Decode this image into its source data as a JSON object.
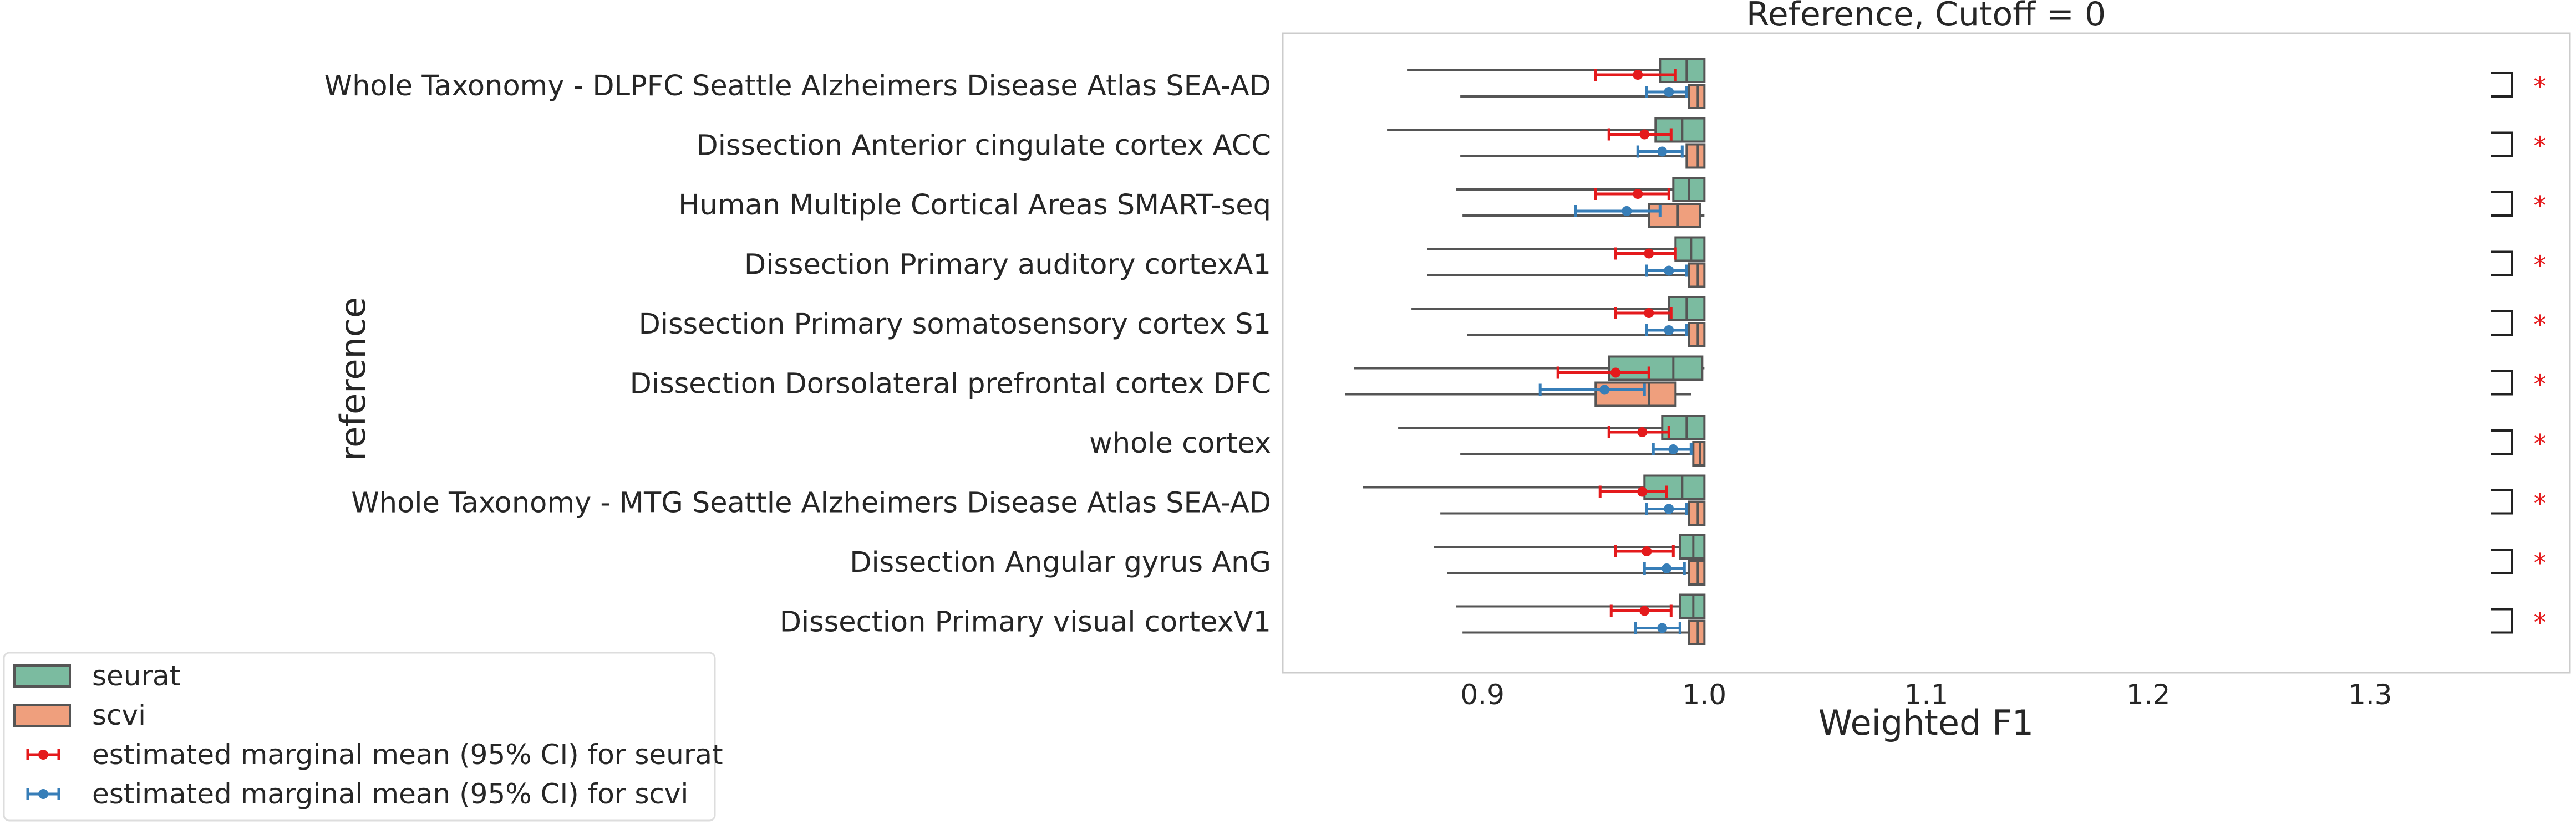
{
  "chart_data": {
    "type": "box",
    "title": "Reference, Cutoff = 0",
    "xlabel": "Weighted F1",
    "ylabel": "reference",
    "xlim": [
      0.81,
      1.39
    ],
    "xticks": [
      "0.9",
      "1.0",
      "1.1",
      "1.2",
      "1.3"
    ],
    "grid": false,
    "legend_position": "lower-left outside",
    "categories": [
      "Whole Taxonomy - DLPFC Seattle Alzheimers Disease Atlas SEA-AD",
      "Dissection Anterior cingulate cortex ACC",
      "Human Multiple Cortical Areas SMART-seq",
      "Dissection Primary auditory cortexA1",
      "Dissection Primary somatosensory cortex S1",
      "Dissection Dorsolateral prefrontal cortex DFC",
      "whole cortex",
      "Whole Taxonomy - MTG Seattle Alzheimers Disease Atlas SEA-AD",
      "Dissection Angular gyrus AnG",
      "Dissection Primary visual cortexV1"
    ],
    "series": [
      {
        "name": "seurat",
        "color": "#7bbba0",
        "boxes": [
          {
            "min": 0.866,
            "q1": 0.98,
            "median": 0.992,
            "q3": 1.0,
            "max": 1.0
          },
          {
            "min": 0.857,
            "q1": 0.978,
            "median": 0.99,
            "q3": 1.0,
            "max": 1.0
          },
          {
            "min": 0.888,
            "q1": 0.986,
            "median": 0.993,
            "q3": 1.0,
            "max": 1.0
          },
          {
            "min": 0.875,
            "q1": 0.987,
            "median": 0.994,
            "q3": 1.0,
            "max": 1.0
          },
          {
            "min": 0.868,
            "q1": 0.984,
            "median": 0.992,
            "q3": 1.0,
            "max": 1.0
          },
          {
            "min": 0.842,
            "q1": 0.957,
            "median": 0.986,
            "q3": 0.999,
            "max": 1.0
          },
          {
            "min": 0.862,
            "q1": 0.981,
            "median": 0.992,
            "q3": 1.0,
            "max": 1.0
          },
          {
            "min": 0.846,
            "q1": 0.973,
            "median": 0.99,
            "q3": 1.0,
            "max": 1.0
          },
          {
            "min": 0.878,
            "q1": 0.989,
            "median": 0.995,
            "q3": 1.0,
            "max": 1.0
          },
          {
            "min": 0.888,
            "q1": 0.989,
            "median": 0.995,
            "q3": 1.0,
            "max": 1.0
          }
        ],
        "emm": [
          {
            "mean": 0.97,
            "lo": 0.951,
            "hi": 0.987
          },
          {
            "mean": 0.973,
            "lo": 0.957,
            "hi": 0.985
          },
          {
            "mean": 0.97,
            "lo": 0.951,
            "hi": 0.984
          },
          {
            "mean": 0.975,
            "lo": 0.96,
            "hi": 0.987
          },
          {
            "mean": 0.975,
            "lo": 0.96,
            "hi": 0.985
          },
          {
            "mean": 0.96,
            "lo": 0.934,
            "hi": 0.975
          },
          {
            "mean": 0.972,
            "lo": 0.957,
            "hi": 0.984
          },
          {
            "mean": 0.972,
            "lo": 0.953,
            "hi": 0.983
          },
          {
            "mean": 0.974,
            "lo": 0.96,
            "hi": 0.986
          },
          {
            "mean": 0.973,
            "lo": 0.958,
            "hi": 0.985
          }
        ]
      },
      {
        "name": "scvi",
        "color": "#ef9f7d",
        "boxes": [
          {
            "min": 0.89,
            "q1": 0.993,
            "median": 0.997,
            "q3": 1.0,
            "max": 1.0
          },
          {
            "min": 0.89,
            "q1": 0.992,
            "median": 0.997,
            "q3": 1.0,
            "max": 1.0
          },
          {
            "min": 0.891,
            "q1": 0.975,
            "median": 0.988,
            "q3": 0.998,
            "max": 1.0
          },
          {
            "min": 0.875,
            "q1": 0.993,
            "median": 0.997,
            "q3": 1.0,
            "max": 1.0
          },
          {
            "min": 0.893,
            "q1": 0.993,
            "median": 0.997,
            "q3": 1.0,
            "max": 1.0
          },
          {
            "min": 0.838,
            "q1": 0.951,
            "median": 0.975,
            "q3": 0.987,
            "max": 0.994
          },
          {
            "min": 0.89,
            "q1": 0.995,
            "median": 0.998,
            "q3": 1.0,
            "max": 1.0
          },
          {
            "min": 0.881,
            "q1": 0.993,
            "median": 0.997,
            "q3": 1.0,
            "max": 1.0
          },
          {
            "min": 0.884,
            "q1": 0.993,
            "median": 0.997,
            "q3": 1.0,
            "max": 1.0
          },
          {
            "min": 0.891,
            "q1": 0.993,
            "median": 0.997,
            "q3": 1.0,
            "max": 1.0
          }
        ],
        "emm": [
          {
            "mean": 0.984,
            "lo": 0.974,
            "hi": 0.992
          },
          {
            "mean": 0.981,
            "lo": 0.97,
            "hi": 0.99
          },
          {
            "mean": 0.965,
            "lo": 0.942,
            "hi": 0.98
          },
          {
            "mean": 0.984,
            "lo": 0.974,
            "hi": 0.992
          },
          {
            "mean": 0.984,
            "lo": 0.974,
            "hi": 0.992
          },
          {
            "mean": 0.955,
            "lo": 0.926,
            "hi": 0.973
          },
          {
            "mean": 0.986,
            "lo": 0.977,
            "hi": 0.994
          },
          {
            "mean": 0.984,
            "lo": 0.974,
            "hi": 0.992
          },
          {
            "mean": 0.983,
            "lo": 0.973,
            "hi": 0.991
          },
          {
            "mean": 0.981,
            "lo": 0.969,
            "hi": 0.989
          }
        ]
      }
    ],
    "significance": [
      "*",
      "*",
      "*",
      "*",
      "*",
      "*",
      "*",
      "*",
      "*",
      "*"
    ],
    "legend": [
      {
        "label": "seurat",
        "kind": "box",
        "color": "#7bbba0"
      },
      {
        "label": "scvi",
        "kind": "box",
        "color": "#ef9f7d"
      },
      {
        "label": "estimated marginal mean (95% CI) for seurat",
        "kind": "errorbar",
        "color": "#e41a1c"
      },
      {
        "label": "estimated marginal mean (95% CI) for scvi",
        "kind": "errorbar",
        "color": "#377eb8"
      }
    ]
  }
}
